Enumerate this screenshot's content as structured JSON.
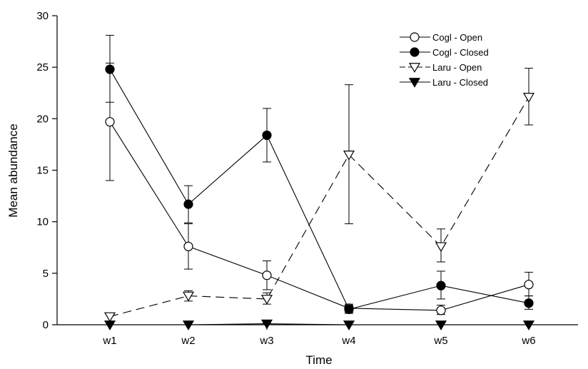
{
  "chart_data": {
    "type": "line",
    "title": "",
    "xlabel": "Time",
    "ylabel": "Mean abundance",
    "categories": [
      "w1",
      "w2",
      "w3",
      "w4",
      "w5",
      "w6"
    ],
    "ylim": [
      0,
      30
    ],
    "yticks": [
      "0",
      "5",
      "10",
      "15",
      "20",
      "25",
      "30"
    ],
    "grid": false,
    "legend_position": "top-right",
    "series": [
      {
        "name": "Cogl - Open",
        "marker": "circle-open",
        "line": "solid",
        "values": [
          19.7,
          7.6,
          4.8,
          1.6,
          1.4,
          3.9
        ],
        "err_low": [
          14.0,
          5.4,
          3.4,
          1.2,
          1.0,
          2.8
        ],
        "err_high": [
          25.4,
          9.8,
          6.2,
          2.0,
          1.9,
          5.1
        ]
      },
      {
        "name": "Cogl - Closed",
        "marker": "circle-filled",
        "line": "solid",
        "values": [
          24.8,
          11.7,
          18.4,
          1.5,
          3.8,
          2.1
        ],
        "err_low": [
          21.6,
          9.9,
          15.8,
          1.1,
          2.5,
          1.5
        ],
        "err_high": [
          28.1,
          13.5,
          21.0,
          1.9,
          5.2,
          2.8
        ]
      },
      {
        "name": "Laru - Open",
        "marker": "triangle-down-open",
        "line": "dashed",
        "values": [
          0.8,
          2.8,
          2.5,
          16.5,
          7.6,
          22.1
        ],
        "err_low": [
          0.8,
          2.3,
          2.0,
          9.8,
          6.1,
          19.4
        ],
        "err_high": [
          0.8,
          3.3,
          3.1,
          23.3,
          9.3,
          24.9
        ]
      },
      {
        "name": "Laru - Closed",
        "marker": "triangle-down-filled",
        "line": "solid",
        "values": [
          0.0,
          0.0,
          0.1,
          0.0,
          0.0,
          0.0
        ],
        "err_low": [
          0.0,
          0.0,
          0.0,
          0.0,
          0.0,
          0.0
        ],
        "err_high": [
          0.0,
          0.0,
          0.2,
          0.0,
          0.0,
          0.0
        ]
      }
    ]
  }
}
